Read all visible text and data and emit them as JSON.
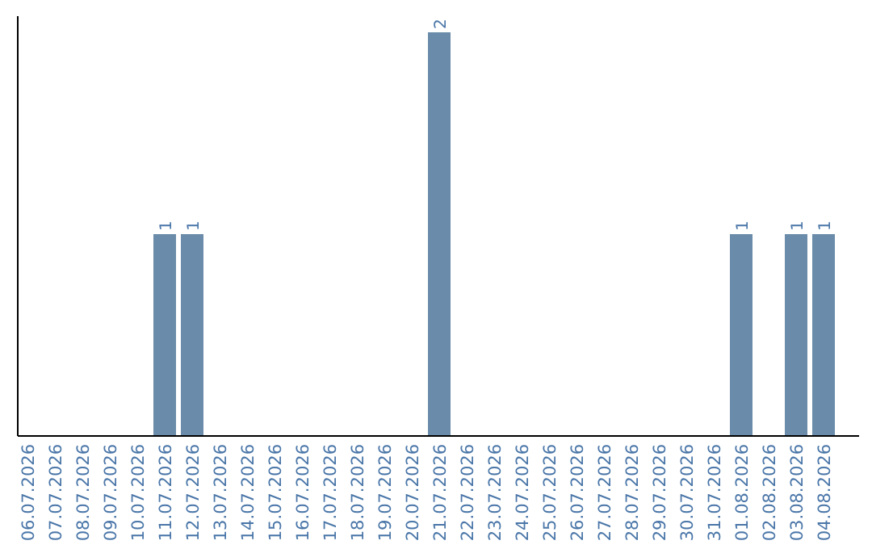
{
  "chart_data": {
    "type": "bar",
    "categories": [
      "06.07.2026",
      "07.07.2026",
      "08.07.2026",
      "09.07.2026",
      "10.07.2026",
      "11.07.2026",
      "12.07.2026",
      "13.07.2026",
      "14.07.2026",
      "15.07.2026",
      "16.07.2026",
      "17.07.2026",
      "18.07.2026",
      "19.07.2026",
      "20.07.2026",
      "21.07.2026",
      "22.07.2026",
      "23.07.2026",
      "24.07.2026",
      "25.07.2026",
      "26.07.2026",
      "27.07.2026",
      "28.07.2026",
      "29.07.2026",
      "30.07.2026",
      "31.07.2026",
      "01.08.2026",
      "02.08.2026",
      "03.08.2026",
      "04.08.2026"
    ],
    "values": [
      0,
      0,
      0,
      0,
      0,
      1,
      1,
      0,
      0,
      0,
      0,
      0,
      0,
      0,
      0,
      2,
      0,
      0,
      0,
      0,
      0,
      0,
      0,
      0,
      0,
      0,
      1,
      0,
      1,
      1
    ],
    "value_labels": [
      null,
      null,
      null,
      null,
      null,
      "1",
      "1",
      null,
      null,
      null,
      null,
      null,
      null,
      null,
      null,
      "2",
      null,
      null,
      null,
      null,
      null,
      null,
      null,
      null,
      null,
      null,
      "1",
      null,
      "1",
      "1"
    ],
    "color": "#6a8caa"
  }
}
